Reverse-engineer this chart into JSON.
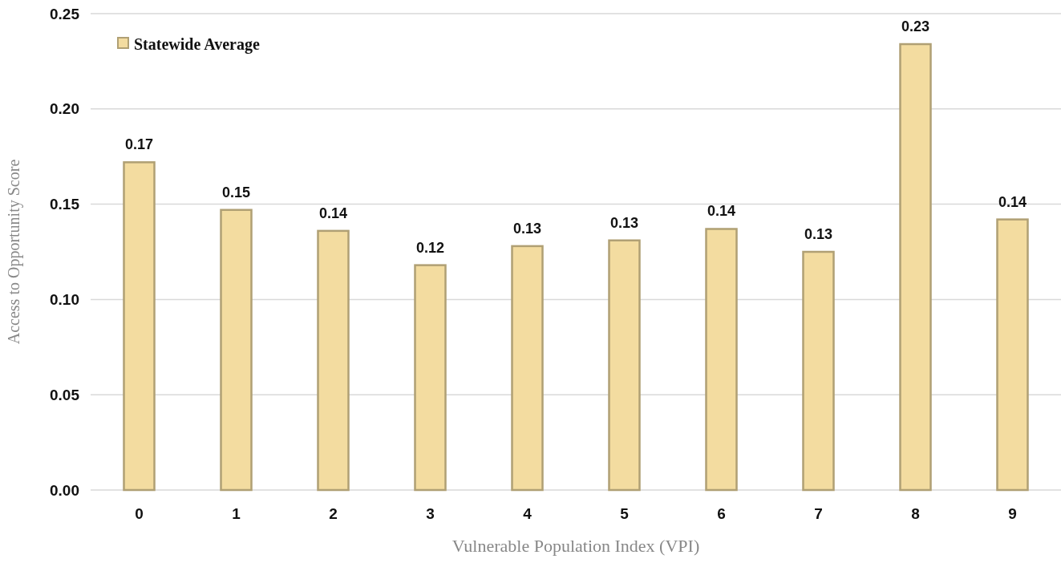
{
  "chart_data": {
    "type": "bar",
    "xlabel": "Vulnerable Population Index (VPI)",
    "ylabel": "Access to Opportunity Score",
    "categories": [
      "0",
      "1",
      "2",
      "3",
      "4",
      "5",
      "6",
      "7",
      "8",
      "9"
    ],
    "series": [
      {
        "name": "Statewide Average",
        "color": "#f3dca0",
        "values": [
          0.172,
          0.147,
          0.136,
          0.118,
          0.128,
          0.131,
          0.137,
          0.125,
          0.234,
          0.142
        ],
        "value_labels": [
          "0.17",
          "0.15",
          "0.14",
          "0.12",
          "0.13",
          "0.13",
          "0.14",
          "0.13",
          "0.23",
          "0.14"
        ]
      }
    ],
    "ylim": [
      0,
      0.25
    ],
    "yticks": [
      {
        "value": 0,
        "label": "0.00"
      },
      {
        "value": 0.05,
        "label": "0.05"
      },
      {
        "value": 0.1,
        "label": "0.10"
      },
      {
        "value": 0.15,
        "label": "0.15"
      },
      {
        "value": 0.2,
        "label": "0.20"
      },
      {
        "value": 0.25,
        "label": "0.25"
      }
    ],
    "grid": "y",
    "legend": "top left"
  }
}
